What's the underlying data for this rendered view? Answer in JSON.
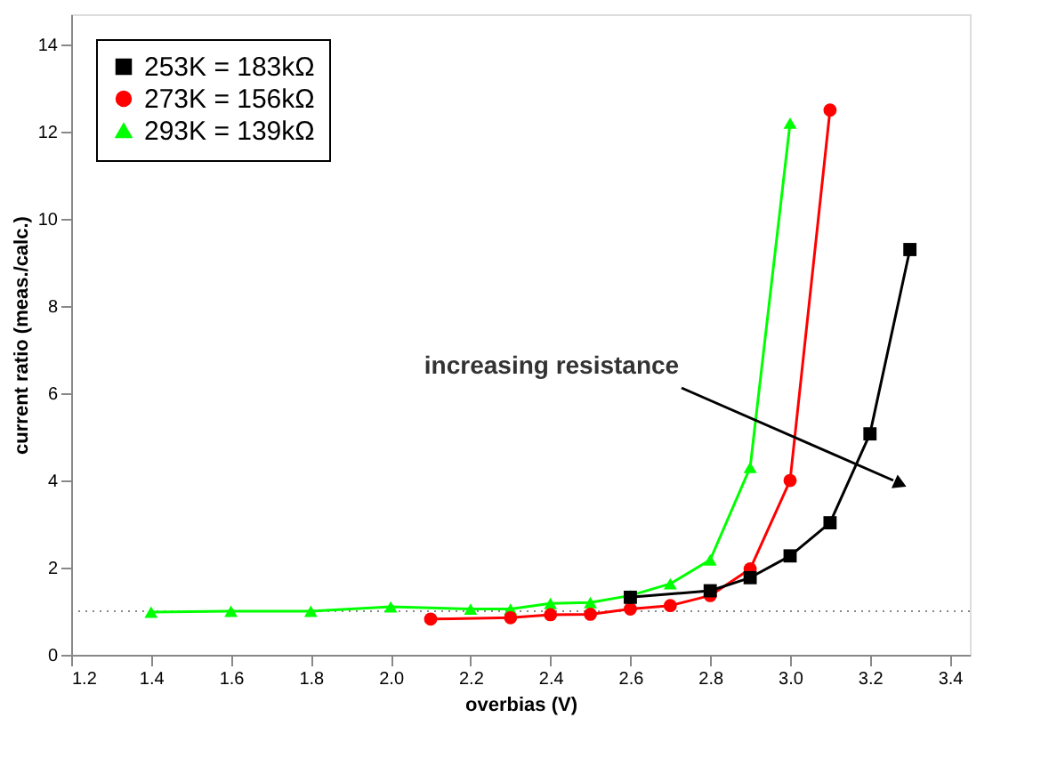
{
  "chart_data": {
    "type": "line",
    "xlabel": "overbias (V)",
    "ylabel": "current ratio (meas./calc.)",
    "xlim": [
      1.2,
      3.45
    ],
    "ylim": [
      0,
      14.7
    ],
    "xticks": [
      1.2,
      1.4,
      1.6,
      1.8,
      {
        "value": 2,
        "label": "2.0"
      },
      2.2,
      2.4,
      2.6,
      2.8,
      {
        "value": 3,
        "label": "3.0"
      },
      3.2,
      3.4
    ],
    "yticks": [
      0,
      2,
      4,
      6,
      8,
      10,
      12,
      14
    ],
    "grid": false,
    "legend": "top left",
    "line_style": "solid",
    "series": [
      {
        "name": "253K = 183kΩ",
        "color": "#000000",
        "marker": "square",
        "x": [
          2.6,
          2.8,
          2.9,
          3.0,
          3.1,
          3.2,
          3.3
        ],
        "values": [
          1.32,
          1.47,
          1.77,
          2.27,
          3.03,
          5.07,
          9.3
        ]
      },
      {
        "name": "273K = 156kΩ",
        "color": "#ff0000",
        "marker": "circle",
        "x": [
          2.1,
          2.3,
          2.4,
          2.5,
          2.6,
          2.7,
          2.8,
          2.9,
          3.0,
          3.1
        ],
        "values": [
          0.82,
          0.85,
          0.92,
          0.93,
          1.05,
          1.13,
          1.36,
          1.97,
          4.0,
          12.5
        ]
      },
      {
        "name": "293K = 139kΩ",
        "color": "#00ff00",
        "marker": "triangle",
        "x": [
          1.4,
          1.6,
          1.8,
          2.0,
          2.2,
          2.3,
          2.4,
          2.5,
          2.6,
          2.7,
          2.8,
          2.9,
          3.0
        ],
        "values": [
          0.98,
          1.0,
          1.0,
          1.1,
          1.05,
          1.05,
          1.18,
          1.2,
          1.36,
          1.63,
          2.18,
          4.3,
          12.2
        ]
      }
    ],
    "ref_lines": [
      {
        "axis": "y",
        "value": 1,
        "color": "#888888",
        "line_style": "dotted"
      }
    ],
    "annotations": [
      "increasing resistance"
    ]
  }
}
